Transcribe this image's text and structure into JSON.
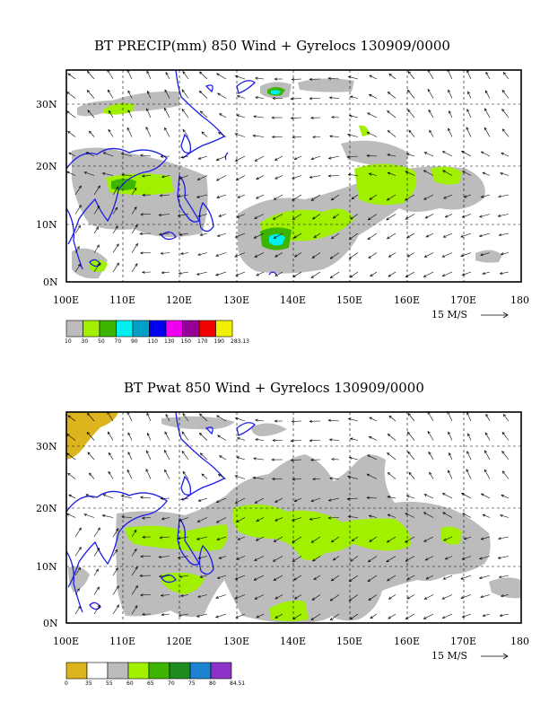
{
  "panels": [
    {
      "title": "BT PRECIP(mm) 850 Wind + Gyrelocs 130909/0000",
      "lat_labels": [
        "30N",
        "20N",
        "10N",
        "0N"
      ],
      "lon_labels": [
        "100E",
        "110E",
        "120E",
        "130E",
        "140E",
        "150E",
        "160E",
        "170E",
        "180"
      ],
      "vector_ref": "15 M/S",
      "legend": {
        "colors": [
          "#bcbcbc",
          "#a0f000",
          "#3cb400",
          "#00f0f0",
          "#00a0c8",
          "#0000f0",
          "#f000f0",
          "#960096",
          "#f00000",
          "#f0f000"
        ],
        "labels": [
          "10",
          "30",
          "50",
          "70",
          "90",
          "110",
          "130",
          "150",
          "170",
          "190",
          "283.13"
        ]
      }
    },
    {
      "title": "BT Pwat 850 Wind + Gyrelocs 130909/0000",
      "lat_labels": [
        "30N",
        "20N",
        "10N",
        "0N"
      ],
      "lon_labels": [
        "100E",
        "110E",
        "120E",
        "130E",
        "140E",
        "150E",
        "160E",
        "170E",
        "180"
      ],
      "vector_ref": "15 M/S",
      "legend": {
        "colors": [
          "#dcb41e",
          "#ffffff",
          "#bcbcbc",
          "#a0f000",
          "#3cb400",
          "#1e8c1e",
          "#1e82d2",
          "#8c32c8"
        ],
        "labels": [
          "0",
          "35",
          "55",
          "60",
          "65",
          "70",
          "75",
          "80",
          "84.51"
        ]
      }
    }
  ]
}
